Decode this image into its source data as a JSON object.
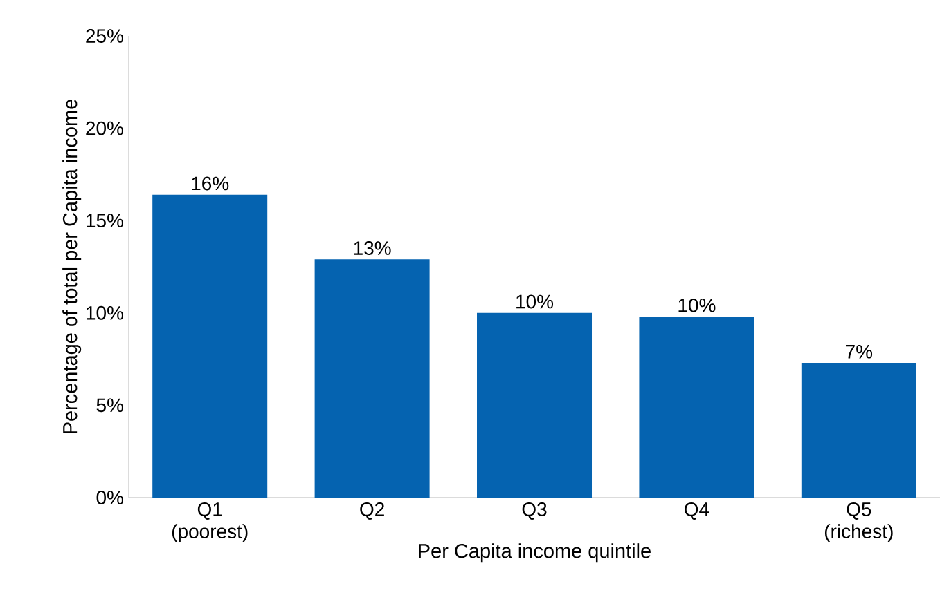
{
  "chart_data": {
    "type": "bar",
    "xlabel": "Per Capita income quintile",
    "ylabel": "Percentage of total per Capita income",
    "categories": [
      "Q1 (poorest)",
      "Q2",
      "Q3",
      "Q4",
      "Q5 (richest)"
    ],
    "values": [
      16.4,
      12.9,
      10.0,
      9.8,
      7.3
    ],
    "value_labels": [
      "16%",
      "13%",
      "10%",
      "10%",
      "7%"
    ],
    "color": "#0563b0",
    "ylim": [
      0,
      25
    ],
    "yticks": [
      {
        "value": 0,
        "label": "0%"
      },
      {
        "value": 5,
        "label": "5%"
      },
      {
        "value": 10,
        "label": "10%"
      },
      {
        "value": 15,
        "label": "15%"
      },
      {
        "value": 20,
        "label": "20%"
      },
      {
        "value": 25,
        "label": "25%"
      }
    ]
  }
}
